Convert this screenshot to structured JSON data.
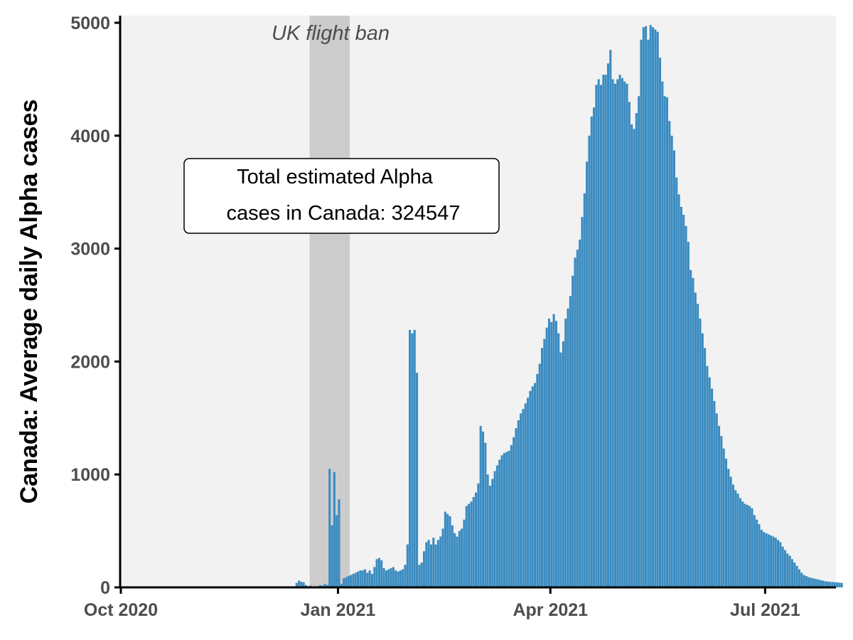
{
  "chart_data": {
    "type": "bar",
    "title": "",
    "xlabel": "",
    "ylabel": "Canada: Average daily Alpha cases",
    "x_start_date": "2020-10-01",
    "x_end_date": "2021-07-31",
    "ylim": [
      0,
      5000
    ],
    "y_ticks": [
      0,
      1000,
      2000,
      3000,
      4000,
      5000
    ],
    "y_tick_labels": [
      "0",
      "1000",
      "2000",
      "3000",
      "4000",
      "5000"
    ],
    "x_ticks": [
      {
        "date": "2020-10-01",
        "label": "Oct 2020"
      },
      {
        "date": "2021-01-01",
        "label": "Jan 2021"
      },
      {
        "date": "2021-04-01",
        "label": "Apr 2021"
      },
      {
        "date": "2021-07-01",
        "label": "Jul 2021"
      }
    ],
    "shaded_band": {
      "start_date": "2020-12-20",
      "end_date": "2021-01-06",
      "label": "UK flight ban"
    },
    "annotation": {
      "line1": "Total estimated Alpha",
      "line2": "cases in Canada: 324547"
    },
    "grid": false,
    "colors": {
      "bar": "#3a8bc0",
      "panel": "#f2f2f2",
      "band": "#cccccc"
    },
    "bar_day_start": 74,
    "values": [
      40,
      60,
      50,
      45,
      20,
      10,
      15,
      5,
      5,
      10,
      20,
      15,
      30,
      20,
      1050,
      550,
      1020,
      640,
      780,
      30,
      80,
      90,
      100,
      110,
      120,
      130,
      140,
      150,
      150,
      160,
      130,
      150,
      120,
      180,
      250,
      260,
      240,
      170,
      150,
      160,
      170,
      180,
      150,
      140,
      150,
      160,
      200,
      380,
      2280,
      2250,
      2280,
      1900,
      200,
      220,
      320,
      400,
      420,
      380,
      440,
      380,
      420,
      450,
      520,
      670,
      650,
      630,
      550,
      480,
      450,
      500,
      520,
      600,
      720,
      740,
      760,
      800,
      840,
      920,
      1430,
      1380,
      1280,
      1000,
      900,
      960,
      1030,
      1080,
      1130,
      1170,
      1190,
      1200,
      1210,
      1260,
      1330,
      1410,
      1480,
      1540,
      1580,
      1630,
      1680,
      1740,
      1780,
      1810,
      1890,
      1980,
      2120,
      2200,
      2300,
      2380,
      2350,
      2420,
      2360,
      2250,
      2080,
      2180,
      2380,
      2470,
      2580,
      2760,
      2920,
      2990,
      3080,
      3280,
      3490,
      3770,
      4000,
      4170,
      4250,
      4450,
      4500,
      4450,
      4540,
      4540,
      4640,
      4760,
      4500,
      4460,
      4500,
      4540,
      4510,
      4480,
      4460,
      4300,
      4100,
      4060,
      4200,
      4350,
      4850,
      4960,
      4970,
      4850,
      4980,
      4960,
      4940,
      4920,
      4690,
      4480,
      4350,
      4340,
      4130,
      4000,
      3870,
      3630,
      3480,
      3370,
      3300,
      3200,
      3060,
      2810,
      2740,
      2610,
      2510,
      2380,
      2250,
      2120,
      1960,
      1860,
      1760,
      1650,
      1540,
      1430,
      1340,
      1230,
      1140,
      1050,
      980,
      910,
      860,
      830,
      790,
      760,
      740,
      730,
      720,
      700,
      640,
      600,
      560,
      510,
      490,
      480,
      470,
      460,
      450,
      440,
      420,
      400,
      360,
      330,
      300,
      280,
      250,
      220,
      190,
      160,
      130,
      110,
      100,
      90,
      85,
      80,
      75,
      70,
      65,
      60,
      55,
      52,
      50,
      48,
      46,
      44,
      42,
      40
    ]
  }
}
